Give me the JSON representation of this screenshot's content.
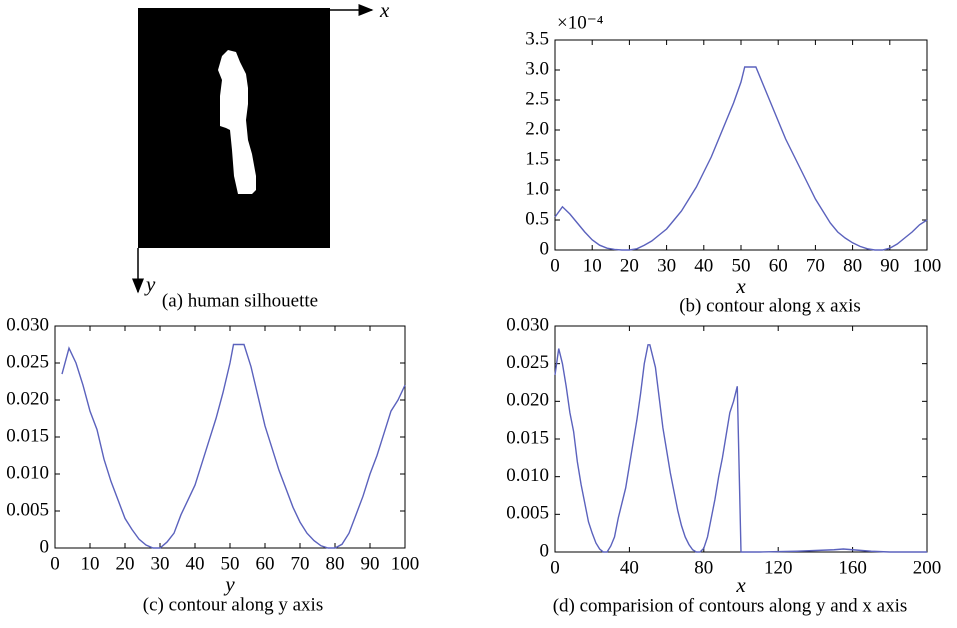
{
  "silhouette": {
    "caption": "(a) human silhouette",
    "x_label": "x",
    "y_label": "y"
  },
  "chart_data": [
    {
      "type": "line",
      "caption": "(b) contour along x axis",
      "xlabel": "x",
      "exponent_label": "×10⁻⁴",
      "xlim": [
        0,
        100
      ],
      "xticks": [
        0,
        10,
        20,
        30,
        40,
        50,
        60,
        70,
        80,
        90,
        100
      ],
      "ylim": [
        0,
        3.5
      ],
      "yticks": [
        0,
        0.5,
        {
          "value": 1,
          "label": "1.0"
        },
        1.5,
        {
          "value": 2,
          "label": "2.0"
        },
        2.5,
        {
          "value": 3,
          "label": "3.0"
        },
        3.5
      ],
      "color": "#5b62bd",
      "x": [
        0,
        2,
        4,
        6,
        8,
        10,
        12,
        14,
        16,
        18,
        20,
        22,
        24,
        26,
        28,
        30,
        32,
        34,
        36,
        38,
        40,
        42,
        44,
        46,
        48,
        50,
        51,
        54,
        56,
        58,
        60,
        62,
        64,
        66,
        68,
        70,
        72,
        74,
        76,
        78,
        80,
        82,
        84,
        86,
        88,
        90,
        92,
        94,
        96,
        98,
        100
      ],
      "values": [
        0.55,
        0.72,
        0.6,
        0.45,
        0.3,
        0.17,
        0.08,
        0.03,
        0.01,
        0,
        0,
        0.02,
        0.08,
        0.15,
        0.25,
        0.35,
        0.5,
        0.65,
        0.85,
        1.05,
        1.3,
        1.55,
        1.85,
        2.15,
        2.45,
        2.8,
        3.05,
        3.05,
        2.75,
        2.45,
        2.15,
        1.85,
        1.6,
        1.35,
        1.1,
        0.85,
        0.65,
        0.45,
        0.3,
        0.2,
        0.12,
        0.06,
        0.02,
        0,
        0,
        0.03,
        0.1,
        0.2,
        0.3,
        0.42,
        0.5
      ]
    },
    {
      "type": "line",
      "caption": "(c) contour along y axis",
      "xlabel": "y",
      "xlim": [
        0,
        100
      ],
      "xticks": [
        0,
        10,
        20,
        30,
        40,
        50,
        60,
        70,
        80,
        90,
        100
      ],
      "ylim": [
        0,
        0.03
      ],
      "yticks": [
        0,
        0.005,
        {
          "value": 0.01,
          "label": "0.010"
        },
        0.015,
        {
          "value": 0.02,
          "label": "0.020"
        },
        0.025,
        {
          "value": 0.03,
          "label": "0.030"
        }
      ],
      "color": "#5b62bd",
      "x": [
        2,
        4,
        6,
        8,
        10,
        12,
        14,
        16,
        18,
        20,
        22,
        24,
        26,
        28,
        30,
        32,
        34,
        36,
        38,
        40,
        42,
        44,
        46,
        48,
        50,
        51,
        54,
        56,
        58,
        60,
        62,
        64,
        66,
        68,
        70,
        72,
        74,
        76,
        78,
        80,
        82,
        84,
        86,
        88,
        90,
        92,
        94,
        96,
        98,
        100
      ],
      "values": [
        0.0235,
        0.027,
        0.025,
        0.022,
        0.0185,
        0.016,
        0.012,
        0.009,
        0.0065,
        0.004,
        0.0025,
        0.0012,
        0.0004,
        0,
        0,
        0.0008,
        0.002,
        0.0045,
        0.0065,
        0.0085,
        0.0115,
        0.0145,
        0.0175,
        0.021,
        0.025,
        0.0275,
        0.0275,
        0.0245,
        0.0205,
        0.0165,
        0.0135,
        0.0105,
        0.008,
        0.0055,
        0.0035,
        0.002,
        0.001,
        0.0003,
        0,
        0,
        0.0005,
        0.002,
        0.0045,
        0.007,
        0.01,
        0.0125,
        0.0155,
        0.0185,
        0.02,
        0.022
      ]
    },
    {
      "type": "line",
      "caption": "(d) comparision of contours along y and x axis",
      "xlabel": "x",
      "xlim": [
        0,
        200
      ],
      "xticks": [
        0,
        40,
        80,
        120,
        160,
        200
      ],
      "ylim": [
        0,
        0.03
      ],
      "yticks": [
        0,
        0.005,
        {
          "value": 0.01,
          "label": "0.010"
        },
        0.015,
        {
          "value": 0.02,
          "label": "0.020"
        },
        0.025,
        {
          "value": 0.03,
          "label": "0.030"
        }
      ],
      "color": "#5b62bd",
      "x": [
        0,
        2,
        4,
        6,
        8,
        10,
        12,
        14,
        16,
        18,
        20,
        22,
        24,
        26,
        28,
        30,
        32,
        34,
        36,
        38,
        40,
        42,
        44,
        46,
        48,
        50,
        51,
        54,
        56,
        58,
        60,
        62,
        64,
        66,
        68,
        70,
        72,
        74,
        76,
        78,
        80,
        82,
        84,
        86,
        88,
        90,
        92,
        94,
        96,
        98,
        100,
        100.5,
        110,
        130,
        140,
        150,
        155,
        160,
        170,
        180,
        200
      ],
      "values": [
        0.0235,
        0.027,
        0.025,
        0.022,
        0.0185,
        0.016,
        0.012,
        0.009,
        0.0065,
        0.004,
        0.0025,
        0.0012,
        0.0004,
        0,
        0,
        0.0008,
        0.002,
        0.0045,
        0.0065,
        0.0085,
        0.0115,
        0.0145,
        0.0175,
        0.021,
        0.025,
        0.0275,
        0.0275,
        0.0245,
        0.0205,
        0.0165,
        0.0135,
        0.0105,
        0.008,
        0.0055,
        0.0035,
        0.002,
        0.001,
        0.0003,
        0,
        0,
        0.0005,
        0.002,
        0.0045,
        0.007,
        0.01,
        0.0125,
        0.0155,
        0.0185,
        0.02,
        0.022,
        0,
        0,
        0,
        0.0001,
        0.0002,
        0.0003,
        0.0004,
        0.0003,
        0.0001,
        0,
        0
      ]
    }
  ]
}
